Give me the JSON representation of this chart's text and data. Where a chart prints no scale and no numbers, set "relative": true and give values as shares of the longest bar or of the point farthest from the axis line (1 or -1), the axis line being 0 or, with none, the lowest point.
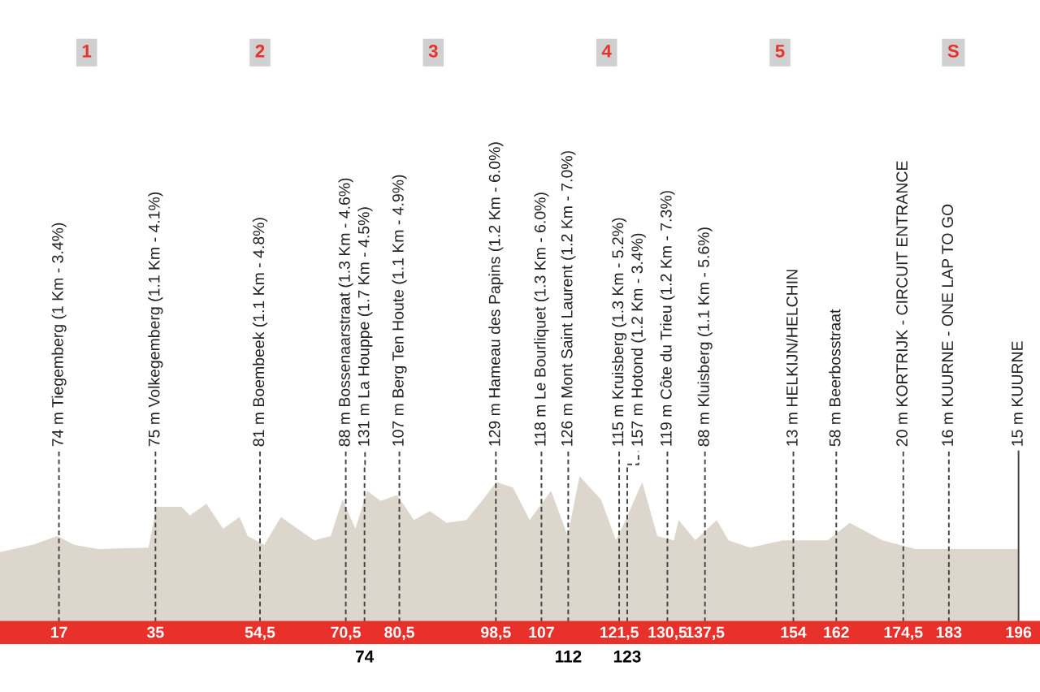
{
  "chart_data": {
    "type": "area",
    "relative": true,
    "color": "#ddd6cc",
    "x": [
      6,
      12.1,
      16.7,
      19.8,
      24.4,
      33.7,
      35.2,
      39.9,
      41.4,
      44.5,
      47.6,
      50.7,
      52.2,
      55.3,
      58.4,
      61.5,
      64.6,
      67.7,
      69.9,
      72.3,
      74.5,
      77,
      80.1,
      83.2,
      86.2,
      89.3,
      93,
      96.1,
      98.6,
      101.7,
      104.8,
      108.8,
      111.9,
      114.1,
      118.1,
      120.9,
      122.7,
      125.8,
      128.6,
      131.7,
      132.6,
      135.7,
      139.7,
      141.9,
      145.9,
      152.1,
      160.4,
      164.5,
      170.6,
      176.8,
      196
    ],
    "values": [
      0.48,
      0.53,
      0.59,
      0.53,
      0.5,
      0.51,
      0.79,
      0.79,
      0.73,
      0.81,
      0.64,
      0.72,
      0.59,
      0.53,
      0.72,
      0.64,
      0.56,
      0.59,
      0.84,
      0.64,
      0.9,
      0.83,
      0.87,
      0.7,
      0.76,
      0.68,
      0.7,
      0.84,
      0.96,
      0.92,
      0.7,
      0.9,
      0.59,
      1,
      0.84,
      0.56,
      0.7,
      0.96,
      0.59,
      0.56,
      0.7,
      0.56,
      0.7,
      0.56,
      0.51,
      0.56,
      0.56,
      0.68,
      0.56,
      0.5,
      0.5
    ],
    "xlim": [
      6,
      200
    ],
    "xticks": [
      17,
      35,
      {
        "value": 54.5,
        "label": "54,5"
      },
      {
        "value": 70.5,
        "label": "70,5"
      },
      {
        "value": 80.5,
        "label": "80,5"
      },
      {
        "value": 98.5,
        "label": "98,5"
      },
      107,
      {
        "value": 121.5,
        "label": "121,5"
      },
      {
        "value": 130.5,
        "label": "130,5"
      },
      {
        "value": 137.5,
        "label": "137,5"
      },
      154,
      162,
      {
        "value": 174.5,
        "label": "174,5"
      },
      183,
      196
    ],
    "x2lim": [
      6,
      200
    ],
    "x2ticks": [
      74,
      112,
      123
    ],
    "ref_lines": [
      {
        "axis": "x",
        "value": 17,
        "label": "74 m Tiegemberg (1 Km - 3.4%)",
        "line_style": "dashed"
      },
      {
        "axis": "x",
        "value": 35,
        "label": "75 m Volkegemberg (1.1 Km - 4.1%)",
        "line_style": "dashed"
      },
      {
        "axis": "x",
        "value": 54.5,
        "label": "81 m Boembeek (1.1 Km - 4.8%)",
        "line_style": "dashed"
      },
      {
        "axis": "x",
        "value": 70.5,
        "label": "88 m Bossenaarstraat (1.3 Km - 4.6%)",
        "line_style": "dashed"
      },
      {
        "axis": "x",
        "value": 74,
        "label": "131 m La Houppe (1.7 Km - 4.5%)",
        "line_style": "dashed"
      },
      {
        "axis": "x",
        "value": 80.5,
        "label": "107 m Berg Ten Houte (1.1 Km - 4.9%)",
        "line_style": "dashed"
      },
      {
        "axis": "x",
        "value": 98.5,
        "label": "129 m Hameau des Papins (1.2 Km - 6.0%)",
        "line_style": "dashed"
      },
      {
        "axis": "x",
        "value": 107,
        "label": "118 m Le Bourliquet (1.3 Km - 6.0%)",
        "line_style": "dashed"
      },
      {
        "axis": "x",
        "value": 112,
        "label": "126 m Mont Saint Laurent (1.2 Km - 7.0%)",
        "line_style": "dashed"
      },
      {
        "axis": "x",
        "value": 121.5,
        "label": "115 m Kruisberg (1.3 Km - 5.2%)",
        "line_style": "dashed"
      },
      {
        "axis": "x",
        "value": 123,
        "label": "157 m Hotond (1.2 Km - 3.4%)",
        "line_style": "dashed"
      },
      {
        "axis": "x",
        "value": 130.5,
        "label": "119 m Côte du Trieu (1.2 Km - 7.3%)",
        "line_style": "dashed"
      },
      {
        "axis": "x",
        "value": 137.5,
        "label": "88 m Kluisberg (1.1 Km - 5.6%)",
        "line_style": "dashed"
      },
      {
        "axis": "x",
        "value": 154,
        "label": "13 m HELKIJN/HELCHIN",
        "line_style": "dashed"
      },
      {
        "axis": "x",
        "value": 162,
        "label": "58 m Beerbosstraat",
        "line_style": "dashed"
      },
      {
        "axis": "x",
        "value": 174.5,
        "label": "20 m KORTRIJK - CIRCUIT ENTRANCE",
        "line_style": "dashed"
      },
      {
        "axis": "x",
        "value": 183,
        "label": "16 m KUURNE - ONE LAP TO GO",
        "line_style": "dashed"
      },
      {
        "axis": "x",
        "value": 196,
        "label": "15 m KUURNE",
        "line_style": "solid"
      }
    ],
    "annotations": [
      "1",
      "2",
      "3",
      "4",
      "5",
      "S"
    ]
  }
}
